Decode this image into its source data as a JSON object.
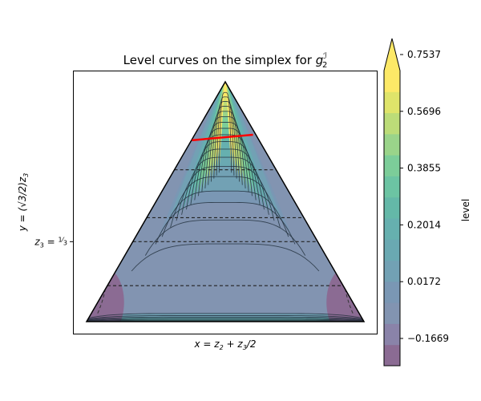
{
  "chart_data": {
    "type": "contour",
    "title_main": "Level curves on the simplex for ",
    "title_sym": "g",
    "title_sup": "ℐ",
    "title_sub": "2",
    "xlabel_main": "x = z",
    "xlabel_sub1": "2",
    "xlabel_plus": " + z",
    "xlabel_sub2": "3",
    "xlabel_tail": "/2",
    "ylabel_main": "y = (√3/2)z",
    "ylabel_sub": "3",
    "ytick_label_main": "z",
    "ytick_label_sub": "3",
    "ytick_label_eq": " = ",
    "ytick_label_num": "1",
    "ytick_label_den": "3",
    "ytick_value": 0.3333,
    "simplex": {
      "left": [
        0,
        0
      ],
      "right": [
        1,
        0
      ],
      "apex": [
        0.5,
        0.866
      ]
    },
    "level_range": [
      -0.25,
      0.7537
    ],
    "contour_band_values": [
      -0.2,
      -0.15,
      -0.1,
      -0.05,
      0.0,
      0.04,
      0.1,
      0.15,
      0.2,
      0.25,
      0.3,
      0.35,
      0.4,
      0.45,
      0.5,
      0.55,
      0.6,
      0.65,
      0.7,
      0.75
    ],
    "dashed_level_lines_z3": [
      0.15,
      0.3333,
      0.4333,
      0.6333
    ],
    "highlight_segment": {
      "color": "#ff0000",
      "start": [
        0.38,
        0.655
      ],
      "end": [
        0.6,
        0.675
      ]
    },
    "colorbar": {
      "label": "level",
      "extend": "max",
      "ticks": [
        -0.1669,
        0.0172,
        0.2014,
        0.3855,
        0.5696,
        0.7537
      ],
      "tick_labels": [
        "−0.1669",
        "0.0172",
        "0.2014",
        "0.3855",
        "0.5696",
        "0.7537"
      ],
      "colors": [
        "#8b6b93",
        "#8a83a9",
        "#8294b1",
        "#7a97b4",
        "#72a1b4",
        "#6aa9b2",
        "#66b0af",
        "#64b8a8",
        "#6cc4a3",
        "#7ccd99",
        "#9ad48a",
        "#bcdc78",
        "#dfe46a",
        "#fde967"
      ]
    }
  }
}
